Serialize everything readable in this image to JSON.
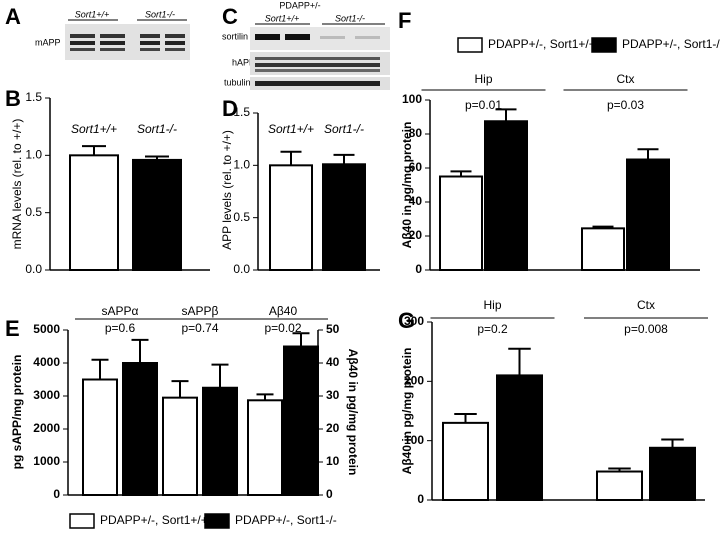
{
  "blots": [
    {
      "panel": "A",
      "band_labels": [
        "mAPP"
      ],
      "genotypes": [
        "Sort1+/+",
        "Sort1-/-"
      ]
    },
    {
      "panel": "C",
      "header": "PDAPP+/-",
      "band_labels": [
        "sortilin",
        "hAPP",
        "tubulin"
      ],
      "genotypes": [
        "Sort1+/+",
        "Sort1-/-"
      ]
    }
  ],
  "chart_data": [
    {
      "type": "bar",
      "panel": "B",
      "ylabel": "mRNA levels (rel. to +/+)",
      "categories": [
        "Sort1+/+",
        "Sort1-/-"
      ],
      "values": [
        1.0,
        0.96
      ],
      "errors": [
        0.08,
        0.03
      ],
      "colors": [
        "#ffffff",
        "#000000"
      ],
      "ylim": [
        0,
        1.5
      ],
      "yticks": [
        {
          "value": 0,
          "label": "0.0"
        },
        0.5,
        {
          "value": 1,
          "label": "1.0"
        },
        1.5
      ]
    },
    {
      "type": "bar",
      "panel": "D",
      "ylabel": "APP levels (rel. to +/+)",
      "categories": [
        "Sort1+/+",
        "Sort1-/-"
      ],
      "values": [
        1.0,
        1.01
      ],
      "errors": [
        0.13,
        0.09
      ],
      "colors": [
        "#ffffff",
        "#000000"
      ],
      "ylim": [
        0,
        1.5
      ],
      "yticks": [
        {
          "value": 0,
          "label": "0.0"
        },
        0.5,
        {
          "value": 1,
          "label": "1.0"
        },
        1.5
      ]
    },
    {
      "type": "bar",
      "panel": "E",
      "ylabel": "pg sAPP/mg protein",
      "y2label": "Aβ40 in pg/mg protein",
      "categories": [
        "sAPPα",
        "sAPPβ",
        "Aβ40"
      ],
      "annotations": [
        "p=0.6",
        "p=0.74",
        "p=0.02"
      ],
      "series": [
        {
          "name": "PDAPP+/-, Sort1+/+",
          "color": "#ffffff",
          "values": [
            3500,
            2950,
            null
          ],
          "errors": [
            600,
            500,
            null
          ]
        },
        {
          "name": "PDAPP+/-, Sort1-/-",
          "color": "#000000",
          "values": [
            4000,
            3250,
            null
          ],
          "errors": [
            700,
            700,
            null
          ]
        },
        {
          "color": "#ffffff",
          "axis": "y2",
          "values": [
            null,
            null,
            28.7
          ],
          "errors": [
            null,
            null,
            1.8
          ]
        },
        {
          "color": "#000000",
          "axis": "y2",
          "values": [
            null,
            null,
            45
          ],
          "errors": [
            null,
            null,
            4
          ]
        }
      ],
      "ylim": [
        0,
        5000
      ],
      "yticks": [
        0,
        1000,
        2000,
        3000,
        4000,
        5000
      ],
      "y2lim": [
        0,
        50
      ],
      "y2ticks": [
        0,
        10,
        20,
        30,
        40,
        50
      ],
      "legend": "bottom"
    },
    {
      "type": "bar",
      "panel": "F",
      "ylabel": "Aβ40 in pg/mg protein",
      "categories": [
        "Hip",
        "Ctx"
      ],
      "annotations": [
        "p=0.01",
        "p=0.03"
      ],
      "series": [
        {
          "name": "PDAPP+/-, Sort1+/+",
          "color": "#ffffff",
          "values": [
            55,
            24.5
          ],
          "errors": [
            3,
            1
          ]
        },
        {
          "name": "PDAPP+/-, Sort1-/-",
          "color": "#000000",
          "values": [
            87.5,
            65
          ],
          "errors": [
            7,
            6
          ]
        }
      ],
      "ylim": [
        0,
        100
      ],
      "yticks": [
        0,
        20,
        40,
        60,
        80,
        100
      ],
      "legend": "top"
    },
    {
      "type": "bar",
      "panel": "G",
      "ylabel": "Aβ40 in pg/mg protein",
      "categories": [
        "Hip",
        "Ctx"
      ],
      "annotations": [
        "p=0.2",
        "p=0.008"
      ],
      "series": [
        {
          "color": "#ffffff",
          "values": [
            130,
            48
          ],
          "errors": [
            15,
            5
          ]
        },
        {
          "color": "#000000",
          "values": [
            210,
            88
          ],
          "errors": [
            45,
            14
          ]
        }
      ],
      "ylim": [
        0,
        300
      ],
      "yticks": [
        0,
        100,
        200,
        300
      ]
    }
  ]
}
